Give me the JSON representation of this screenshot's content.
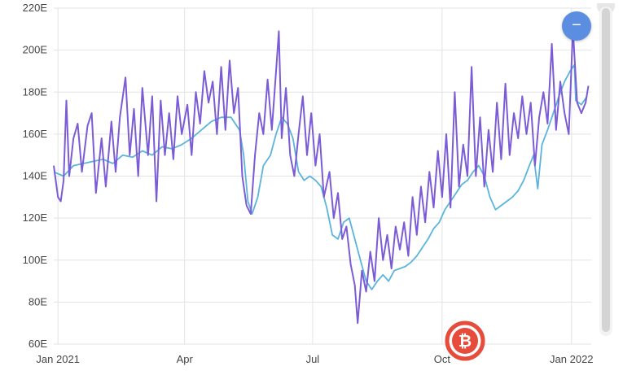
{
  "colors": {
    "series_a": "#7b5bd6",
    "series_b": "#5ab4dc",
    "grid": "#e3e3e3",
    "button": "#5b8de0",
    "watermark": "#e64b3c"
  },
  "controls": {
    "collapse_symbol": "−",
    "watermark_icon": "bitcoin-logo"
  },
  "chart_data": {
    "type": "line",
    "title": "",
    "xlabel": "",
    "ylabel": "",
    "ylim": [
      60,
      220
    ],
    "xlim": [
      "2020-12-29",
      "2022-01-15"
    ],
    "yticks": [
      {
        "value": 60,
        "label": "60E"
      },
      {
        "value": 80,
        "label": "80E"
      },
      {
        "value": 100,
        "label": "100E"
      },
      {
        "value": 120,
        "label": "120E"
      },
      {
        "value": 140,
        "label": "140E"
      },
      {
        "value": 160,
        "label": "160E"
      },
      {
        "value": 180,
        "label": "180E"
      },
      {
        "value": 200,
        "label": "200E"
      },
      {
        "value": 220,
        "label": "220E"
      }
    ],
    "xticks": [
      {
        "value": "2021-01-01",
        "label": "Jan 2021"
      },
      {
        "value": "2021-04-01",
        "label": "Apr"
      },
      {
        "value": "2021-07-01",
        "label": "Jul"
      },
      {
        "value": "2021-10-01",
        "label": "Oct"
      },
      {
        "value": "2022-01-01",
        "label": "Jan 2022"
      }
    ],
    "grid": true,
    "legend": "none",
    "series": [
      {
        "color": "#5ab4dc",
        "points": [
          [
            "2020-12-29",
            142
          ],
          [
            "2021-01-05",
            140
          ],
          [
            "2021-01-12",
            145
          ],
          [
            "2021-01-19",
            146
          ],
          [
            "2021-01-26",
            147
          ],
          [
            "2021-02-02",
            148
          ],
          [
            "2021-02-09",
            146
          ],
          [
            "2021-02-16",
            150
          ],
          [
            "2021-02-23",
            149
          ],
          [
            "2021-03-02",
            152
          ],
          [
            "2021-03-09",
            150
          ],
          [
            "2021-03-16",
            154
          ],
          [
            "2021-03-23",
            153
          ],
          [
            "2021-03-30",
            155
          ],
          [
            "2021-04-06",
            158
          ],
          [
            "2021-04-13",
            162
          ],
          [
            "2021-04-20",
            166
          ],
          [
            "2021-04-27",
            168
          ],
          [
            "2021-05-04",
            168
          ],
          [
            "2021-05-10",
            162
          ],
          [
            "2021-05-13",
            150
          ],
          [
            "2021-05-16",
            128
          ],
          [
            "2021-05-19",
            122
          ],
          [
            "2021-05-23",
            130
          ],
          [
            "2021-05-27",
            145
          ],
          [
            "2021-06-01",
            150
          ],
          [
            "2021-06-05",
            160
          ],
          [
            "2021-06-09",
            168
          ],
          [
            "2021-06-13",
            165
          ],
          [
            "2021-06-17",
            158
          ],
          [
            "2021-06-21",
            142
          ],
          [
            "2021-06-25",
            138
          ],
          [
            "2021-06-29",
            140
          ],
          [
            "2021-07-03",
            138
          ],
          [
            "2021-07-07",
            135
          ],
          [
            "2021-07-11",
            125
          ],
          [
            "2021-07-15",
            112
          ],
          [
            "2021-07-19",
            110
          ],
          [
            "2021-07-23",
            118
          ],
          [
            "2021-07-27",
            120
          ],
          [
            "2021-07-31",
            110
          ],
          [
            "2021-08-04",
            100
          ],
          [
            "2021-08-08",
            90
          ],
          [
            "2021-08-12",
            86
          ],
          [
            "2021-08-16",
            90
          ],
          [
            "2021-08-20",
            93
          ],
          [
            "2021-08-24",
            90
          ],
          [
            "2021-08-28",
            95
          ],
          [
            "2021-09-01",
            96
          ],
          [
            "2021-09-05",
            97
          ],
          [
            "2021-09-09",
            99
          ],
          [
            "2021-09-13",
            102
          ],
          [
            "2021-09-17",
            106
          ],
          [
            "2021-09-21",
            110
          ],
          [
            "2021-09-25",
            115
          ],
          [
            "2021-09-29",
            118
          ],
          [
            "2021-10-03",
            124
          ],
          [
            "2021-10-07",
            128
          ],
          [
            "2021-10-11",
            132
          ],
          [
            "2021-10-15",
            136
          ],
          [
            "2021-10-19",
            138
          ],
          [
            "2021-10-23",
            142
          ],
          [
            "2021-10-27",
            145
          ],
          [
            "2021-10-31",
            140
          ],
          [
            "2021-11-04",
            130
          ],
          [
            "2021-11-08",
            124
          ],
          [
            "2021-11-12",
            126
          ],
          [
            "2021-11-16",
            128
          ],
          [
            "2021-11-20",
            130
          ],
          [
            "2021-11-24",
            133
          ],
          [
            "2021-11-28",
            138
          ],
          [
            "2021-12-02",
            145
          ],
          [
            "2021-12-05",
            150
          ],
          [
            "2021-12-08",
            134
          ],
          [
            "2021-12-11",
            155
          ],
          [
            "2021-12-15",
            162
          ],
          [
            "2021-12-19",
            170
          ],
          [
            "2021-12-23",
            178
          ],
          [
            "2021-12-27",
            185
          ],
          [
            "2021-12-31",
            190
          ],
          [
            "2022-01-03",
            193
          ],
          [
            "2022-01-04",
            176
          ],
          [
            "2022-01-08",
            174
          ],
          [
            "2022-01-12",
            178
          ]
        ]
      },
      {
        "color": "#7b5bd6",
        "points": [
          [
            "2020-12-29",
            145
          ],
          [
            "2021-01-01",
            130
          ],
          [
            "2021-01-03",
            128
          ],
          [
            "2021-01-05",
            138
          ],
          [
            "2021-01-07",
            176
          ],
          [
            "2021-01-09",
            140
          ],
          [
            "2021-01-12",
            158
          ],
          [
            "2021-01-15",
            165
          ],
          [
            "2021-01-18",
            142
          ],
          [
            "2021-01-22",
            164
          ],
          [
            "2021-01-25",
            170
          ],
          [
            "2021-01-28",
            132
          ],
          [
            "2021-02-01",
            158
          ],
          [
            "2021-02-04",
            135
          ],
          [
            "2021-02-08",
            166
          ],
          [
            "2021-02-11",
            142
          ],
          [
            "2021-02-14",
            168
          ],
          [
            "2021-02-18",
            187
          ],
          [
            "2021-02-21",
            150
          ],
          [
            "2021-02-24",
            172
          ],
          [
            "2021-02-27",
            140
          ],
          [
            "2021-03-02",
            182
          ],
          [
            "2021-03-06",
            150
          ],
          [
            "2021-03-09",
            178
          ],
          [
            "2021-03-12",
            128
          ],
          [
            "2021-03-15",
            176
          ],
          [
            "2021-03-18",
            150
          ],
          [
            "2021-03-21",
            170
          ],
          [
            "2021-03-24",
            148
          ],
          [
            "2021-03-27",
            178
          ],
          [
            "2021-03-30",
            160
          ],
          [
            "2021-04-03",
            174
          ],
          [
            "2021-04-06",
            150
          ],
          [
            "2021-04-09",
            180
          ],
          [
            "2021-04-12",
            165
          ],
          [
            "2021-04-15",
            190
          ],
          [
            "2021-04-18",
            175
          ],
          [
            "2021-04-21",
            185
          ],
          [
            "2021-04-24",
            160
          ],
          [
            "2021-04-27",
            192
          ],
          [
            "2021-04-30",
            162
          ],
          [
            "2021-05-03",
            195
          ],
          [
            "2021-05-06",
            170
          ],
          [
            "2021-05-09",
            182
          ],
          [
            "2021-05-12",
            140
          ],
          [
            "2021-05-15",
            126
          ],
          [
            "2021-05-18",
            122
          ],
          [
            "2021-05-21",
            150
          ],
          [
            "2021-05-24",
            170
          ],
          [
            "2021-05-27",
            160
          ],
          [
            "2021-05-30",
            186
          ],
          [
            "2021-06-02",
            162
          ],
          [
            "2021-06-05",
            190
          ],
          [
            "2021-06-07",
            209
          ],
          [
            "2021-06-09",
            158
          ],
          [
            "2021-06-12",
            182
          ],
          [
            "2021-06-15",
            150
          ],
          [
            "2021-06-18",
            140
          ],
          [
            "2021-06-21",
            160
          ],
          [
            "2021-06-24",
            178
          ],
          [
            "2021-06-27",
            150
          ],
          [
            "2021-06-30",
            170
          ],
          [
            "2021-07-03",
            145
          ],
          [
            "2021-07-06",
            160
          ],
          [
            "2021-07-09",
            130
          ],
          [
            "2021-07-13",
            142
          ],
          [
            "2021-07-16",
            120
          ],
          [
            "2021-07-19",
            132
          ],
          [
            "2021-07-22",
            110
          ],
          [
            "2021-07-25",
            116
          ],
          [
            "2021-07-28",
            98
          ],
          [
            "2021-07-31",
            88
          ],
          [
            "2021-08-02",
            70
          ],
          [
            "2021-08-05",
            95
          ],
          [
            "2021-08-08",
            85
          ],
          [
            "2021-08-11",
            104
          ],
          [
            "2021-08-14",
            90
          ],
          [
            "2021-08-17",
            120
          ],
          [
            "2021-08-20",
            100
          ],
          [
            "2021-08-23",
            112
          ],
          [
            "2021-08-26",
            96
          ],
          [
            "2021-08-29",
            116
          ],
          [
            "2021-09-01",
            105
          ],
          [
            "2021-09-04",
            118
          ],
          [
            "2021-09-07",
            102
          ],
          [
            "2021-09-10",
            130
          ],
          [
            "2021-09-13",
            112
          ],
          [
            "2021-09-16",
            135
          ],
          [
            "2021-09-19",
            118
          ],
          [
            "2021-09-22",
            142
          ],
          [
            "2021-09-25",
            125
          ],
          [
            "2021-09-28",
            152
          ],
          [
            "2021-10-01",
            130
          ],
          [
            "2021-10-04",
            160
          ],
          [
            "2021-10-07",
            125
          ],
          [
            "2021-10-10",
            180
          ],
          [
            "2021-10-13",
            135
          ],
          [
            "2021-10-16",
            155
          ],
          [
            "2021-10-19",
            140
          ],
          [
            "2021-10-22",
            192
          ],
          [
            "2021-10-25",
            140
          ],
          [
            "2021-10-28",
            168
          ],
          [
            "2021-10-31",
            135
          ],
          [
            "2021-11-03",
            162
          ],
          [
            "2021-11-06",
            142
          ],
          [
            "2021-11-09",
            175
          ],
          [
            "2021-11-12",
            148
          ],
          [
            "2021-11-15",
            184
          ],
          [
            "2021-11-18",
            150
          ],
          [
            "2021-11-21",
            170
          ],
          [
            "2021-11-24",
            158
          ],
          [
            "2021-11-27",
            178
          ],
          [
            "2021-11-30",
            160
          ],
          [
            "2021-12-03",
            175
          ],
          [
            "2021-12-06",
            145
          ],
          [
            "2021-12-09",
            168
          ],
          [
            "2021-12-12",
            180
          ],
          [
            "2021-12-15",
            165
          ],
          [
            "2021-12-18",
            203
          ],
          [
            "2021-12-21",
            162
          ],
          [
            "2021-12-24",
            185
          ],
          [
            "2021-12-27",
            170
          ],
          [
            "2021-12-30",
            160
          ],
          [
            "2022-01-02",
            210
          ],
          [
            "2022-01-05",
            175
          ],
          [
            "2022-01-08",
            170
          ],
          [
            "2022-01-11",
            175
          ],
          [
            "2022-01-13",
            183
          ]
        ]
      }
    ]
  }
}
